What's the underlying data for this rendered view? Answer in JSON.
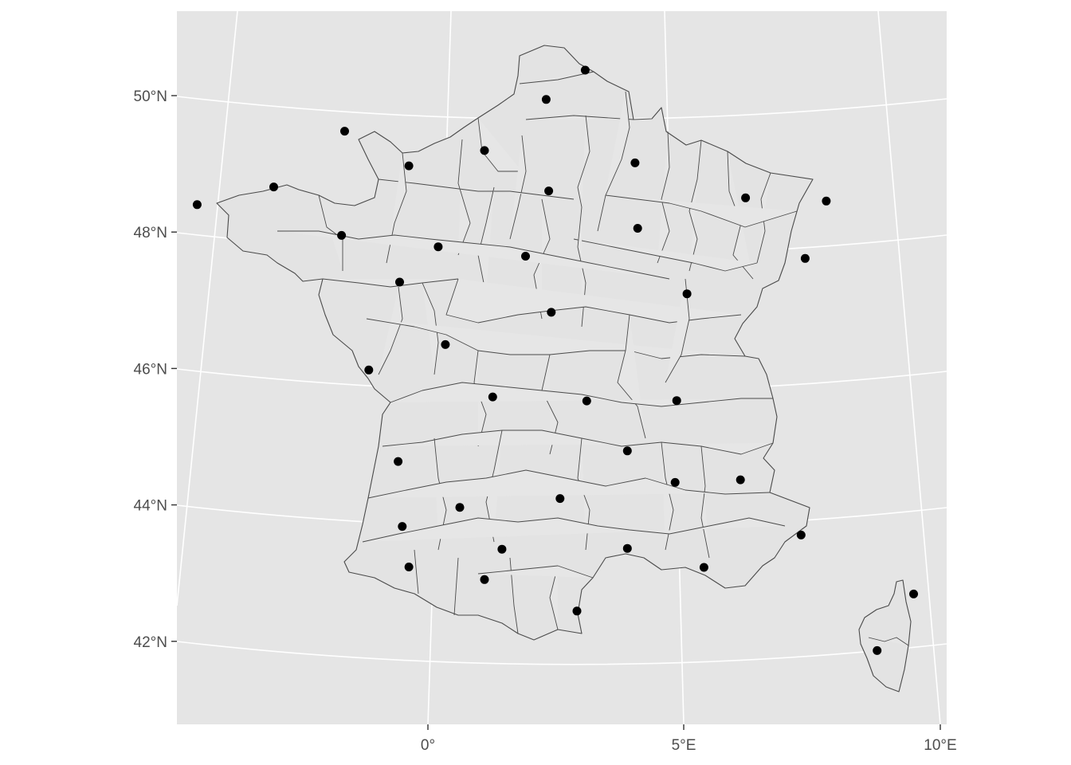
{
  "chart_data": {
    "type": "map",
    "region": "France",
    "projection": "conic",
    "background_color": "#e5e5e5",
    "land_fill": "#e6e6e6",
    "border_color": "#4a4a4a",
    "point_color": "#000000",
    "grid": true,
    "x_ticks": [
      {
        "lon": 0,
        "label": "0°"
      },
      {
        "lon": 5,
        "label": "5°E"
      },
      {
        "lon": 10,
        "label": "10°E"
      }
    ],
    "y_ticks": [
      {
        "lat": 42,
        "label": "42°N"
      },
      {
        "lat": 44,
        "label": "44°N"
      },
      {
        "lat": 46,
        "label": "46°N"
      },
      {
        "lat": 48,
        "label": "48°N"
      },
      {
        "lat": 50,
        "label": "50°N"
      }
    ],
    "points": [
      {
        "lon": 3.06,
        "lat": 50.63
      },
      {
        "lon": 2.3,
        "lat": 50.2
      },
      {
        "lon": -1.62,
        "lat": 49.64
      },
      {
        "lon": 1.1,
        "lat": 49.44
      },
      {
        "lon": -0.37,
        "lat": 49.18
      },
      {
        "lon": 4.03,
        "lat": 49.26
      },
      {
        "lon": 2.35,
        "lat": 48.86
      },
      {
        "lon": 6.18,
        "lat": 48.69
      },
      {
        "lon": 7.75,
        "lat": 48.57
      },
      {
        "lon": -4.49,
        "lat": 48.39
      },
      {
        "lon": -3.0,
        "lat": 48.75
      },
      {
        "lon": 0.2,
        "lat": 48.01
      },
      {
        "lon": -1.68,
        "lat": 48.11
      },
      {
        "lon": 4.08,
        "lat": 48.3
      },
      {
        "lon": 7.34,
        "lat": 47.75
      },
      {
        "lon": 1.9,
        "lat": 47.9
      },
      {
        "lon": 5.04,
        "lat": 47.32
      },
      {
        "lon": -0.55,
        "lat": 47.47
      },
      {
        "lon": 2.4,
        "lat": 47.08
      },
      {
        "lon": 0.34,
        "lat": 46.58
      },
      {
        "lon": -1.15,
        "lat": 46.16
      },
      {
        "lon": 1.26,
        "lat": 45.83
      },
      {
        "lon": 3.09,
        "lat": 45.78
      },
      {
        "lon": 4.84,
        "lat": 45.76
      },
      {
        "lon": 3.88,
        "lat": 45.04
      },
      {
        "lon": -0.58,
        "lat": 44.84
      },
      {
        "lon": 0.62,
        "lat": 44.2
      },
      {
        "lon": 4.81,
        "lat": 44.56
      },
      {
        "lon": 6.08,
        "lat": 44.56
      },
      {
        "lon": 2.57,
        "lat": 44.35
      },
      {
        "lon": -0.5,
        "lat": 43.89
      },
      {
        "lon": 1.44,
        "lat": 43.6
      },
      {
        "lon": 7.26,
        "lat": 43.7
      },
      {
        "lon": 3.88,
        "lat": 43.61
      },
      {
        "lon": 5.37,
        "lat": 43.3
      },
      {
        "lon": -0.37,
        "lat": 43.3
      },
      {
        "lon": 1.1,
        "lat": 43.15
      },
      {
        "lon": 2.9,
        "lat": 42.7
      },
      {
        "lon": 9.45,
        "lat": 42.7
      },
      {
        "lon": 8.74,
        "lat": 41.92
      }
    ]
  }
}
